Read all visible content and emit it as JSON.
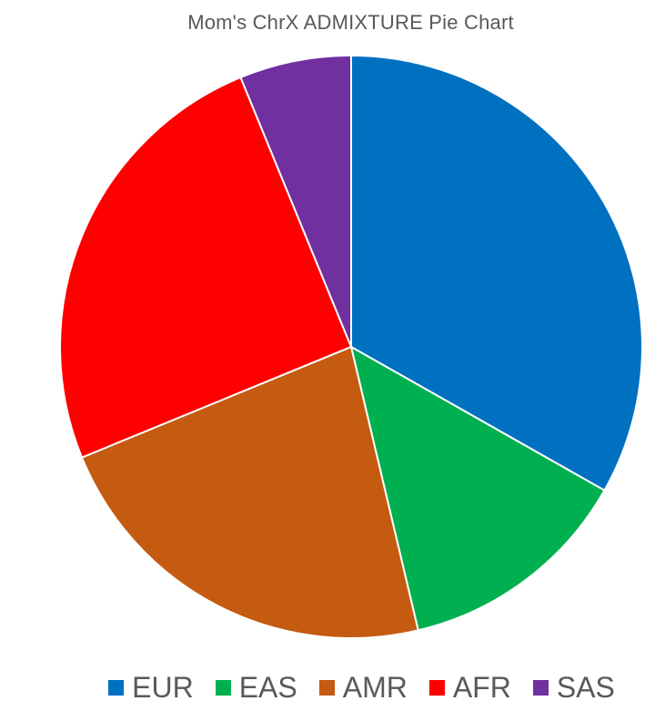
{
  "chart_data": {
    "type": "pie",
    "title": "Mom's ChrX ADMIXTURE Pie Chart",
    "categories": [
      "EUR",
      "EAS",
      "AMR",
      "AFR",
      "SAS"
    ],
    "values": [
      33.2,
      13.1,
      22.5,
      25.0,
      6.2
    ],
    "unit": "percent",
    "colors": [
      "#0070C0",
      "#00B050",
      "#C55A11",
      "#FF0000",
      "#7030A0"
    ],
    "start_angle": "12 o'clock",
    "direction": "clockwise",
    "legend_position": "bottom"
  }
}
